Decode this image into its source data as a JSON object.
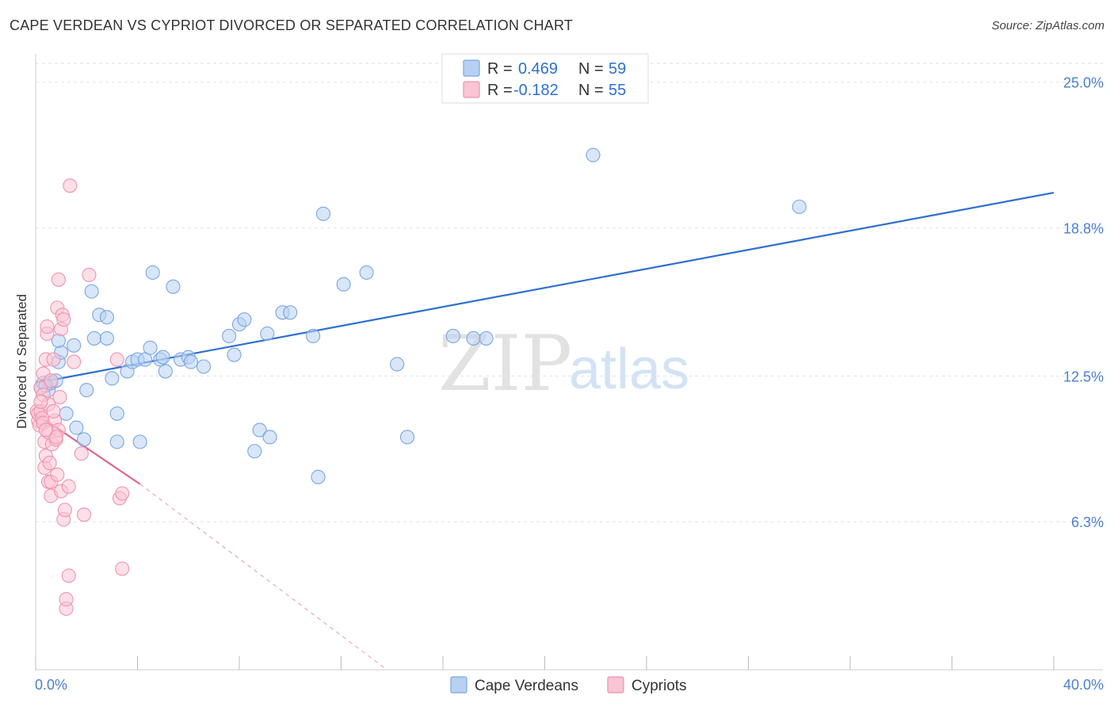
{
  "title": "CAPE VERDEAN VS CYPRIOT DIVORCED OR SEPARATED CORRELATION CHART",
  "source": "Source: ZipAtlas.com",
  "watermark": {
    "zip": "ZIP",
    "atlas": "atlas"
  },
  "legend": {
    "r_label": "R =",
    "n_label": "N =",
    "rows": [
      {
        "r": "0.469",
        "n": "59",
        "fill": "#b8d1f2",
        "stroke": "#7aa6e0"
      },
      {
        "r": "-0.182",
        "n": "55",
        "fill": "#f9c4d4",
        "stroke": "#ee93b0"
      }
    ]
  },
  "bottom_legend": [
    {
      "label": "Cape Verdeans",
      "fill": "#b8d1f2",
      "stroke": "#7aa6e0"
    },
    {
      "label": "Cypriots",
      "fill": "#f9c4d4",
      "stroke": "#ee93b0"
    }
  ],
  "chart_data": {
    "type": "scatter",
    "title": "CAPE VERDEAN VS CYPRIOT DIVORCED OR SEPARATED CORRELATION CHART",
    "xlabel": "",
    "ylabel": "Divorced or Separated",
    "xlim": [
      0,
      40
    ],
    "ylim": [
      0,
      25.8
    ],
    "x_tick_labels": [
      "0.0%",
      "40.0%"
    ],
    "y_ticks": [
      6.3,
      12.5,
      18.8,
      25.0
    ],
    "y_tick_labels": [
      "6.3%",
      "12.5%",
      "18.8%",
      "25.0%"
    ],
    "series": [
      {
        "name": "Cape Verdeans",
        "color": "#7aa6e0",
        "fill": "#b8d1f2",
        "trend": {
          "x": [
            0,
            40
          ],
          "y": [
            12.2,
            20.3
          ],
          "color": "#2e6fd0"
        },
        "points": [
          [
            0.2,
            12.0
          ],
          [
            0.3,
            12.2
          ],
          [
            0.5,
            11.9
          ],
          [
            0.6,
            12.2
          ],
          [
            0.8,
            12.3
          ],
          [
            0.9,
            13.1
          ],
          [
            1.0,
            13.5
          ],
          [
            1.5,
            13.8
          ],
          [
            0.9,
            14.0
          ],
          [
            1.2,
            10.9
          ],
          [
            1.6,
            10.3
          ],
          [
            1.9,
            9.8
          ],
          [
            2.0,
            11.9
          ],
          [
            2.2,
            16.1
          ],
          [
            2.3,
            14.1
          ],
          [
            2.5,
            15.1
          ],
          [
            2.8,
            14.1
          ],
          [
            2.8,
            15.0
          ],
          [
            3.0,
            12.4
          ],
          [
            3.2,
            10.9
          ],
          [
            3.2,
            9.7
          ],
          [
            3.6,
            12.7
          ],
          [
            3.8,
            13.1
          ],
          [
            4.0,
            13.2
          ],
          [
            4.1,
            9.7
          ],
          [
            4.3,
            13.2
          ],
          [
            4.5,
            13.7
          ],
          [
            4.6,
            16.9
          ],
          [
            4.9,
            13.2
          ],
          [
            5.0,
            13.3
          ],
          [
            5.1,
            12.7
          ],
          [
            5.4,
            16.3
          ],
          [
            5.7,
            13.2
          ],
          [
            6.0,
            13.3
          ],
          [
            6.1,
            13.1
          ],
          [
            6.6,
            12.9
          ],
          [
            7.6,
            14.2
          ],
          [
            7.8,
            13.4
          ],
          [
            8.0,
            14.7
          ],
          [
            8.2,
            14.9
          ],
          [
            8.6,
            9.3
          ],
          [
            8.8,
            10.2
          ],
          [
            9.1,
            14.3
          ],
          [
            9.2,
            9.9
          ],
          [
            9.7,
            15.2
          ],
          [
            10.0,
            15.2
          ],
          [
            10.9,
            14.2
          ],
          [
            11.1,
            8.2
          ],
          [
            11.3,
            19.4
          ],
          [
            12.1,
            16.4
          ],
          [
            13.0,
            16.9
          ],
          [
            14.2,
            13.0
          ],
          [
            14.6,
            9.9
          ],
          [
            16.4,
            14.2
          ],
          [
            17.2,
            14.1
          ],
          [
            17.7,
            14.1
          ],
          [
            21.9,
            21.9
          ],
          [
            30.0,
            19.7
          ],
          [
            0.4,
            12.1
          ]
        ]
      },
      {
        "name": "Cypriots",
        "color": "#ee93b0",
        "fill": "#f9c4d4",
        "trend": {
          "x": [
            0,
            4.1
          ],
          "y": [
            10.9,
            7.9
          ],
          "color": "#e0648f"
        },
        "trend_dashed": {
          "x": [
            4.1,
            13.8
          ],
          "y": [
            7.9,
            0.0
          ],
          "color": "#e6a9bd"
        },
        "points": [
          [
            0.05,
            11.0
          ],
          [
            0.1,
            10.6
          ],
          [
            0.1,
            10.9
          ],
          [
            0.15,
            10.4
          ],
          [
            0.2,
            11.0
          ],
          [
            0.2,
            12.0
          ],
          [
            0.25,
            10.7
          ],
          [
            0.3,
            12.6
          ],
          [
            0.3,
            10.5
          ],
          [
            0.35,
            8.6
          ],
          [
            0.35,
            9.7
          ],
          [
            0.4,
            9.1
          ],
          [
            0.4,
            13.2
          ],
          [
            0.45,
            14.3
          ],
          [
            0.45,
            14.6
          ],
          [
            0.5,
            10.1
          ],
          [
            0.5,
            8.0
          ],
          [
            0.55,
            8.8
          ],
          [
            0.6,
            7.4
          ],
          [
            0.6,
            8.0
          ],
          [
            0.65,
            9.6
          ],
          [
            0.7,
            13.2
          ],
          [
            0.75,
            10.6
          ],
          [
            0.8,
            9.8
          ],
          [
            0.85,
            8.3
          ],
          [
            0.85,
            15.4
          ],
          [
            0.9,
            10.2
          ],
          [
            0.9,
            16.6
          ],
          [
            0.95,
            11.6
          ],
          [
            1.0,
            14.5
          ],
          [
            1.0,
            7.6
          ],
          [
            1.05,
            15.1
          ],
          [
            1.1,
            14.9
          ],
          [
            1.1,
            6.4
          ],
          [
            1.15,
            6.8
          ],
          [
            1.2,
            2.6
          ],
          [
            1.3,
            7.8
          ],
          [
            1.3,
            4.0
          ],
          [
            1.35,
            20.6
          ],
          [
            1.2,
            3.0
          ],
          [
            1.5,
            13.1
          ],
          [
            1.8,
            9.2
          ],
          [
            1.9,
            6.6
          ],
          [
            2.1,
            16.8
          ],
          [
            3.2,
            13.2
          ],
          [
            3.3,
            7.3
          ],
          [
            3.4,
            7.5
          ],
          [
            3.4,
            4.3
          ],
          [
            0.5,
            11.3
          ],
          [
            0.7,
            11.0
          ],
          [
            0.3,
            11.7
          ],
          [
            0.6,
            12.3
          ],
          [
            0.2,
            11.4
          ],
          [
            0.8,
            9.9
          ],
          [
            0.4,
            10.2
          ]
        ]
      }
    ]
  }
}
